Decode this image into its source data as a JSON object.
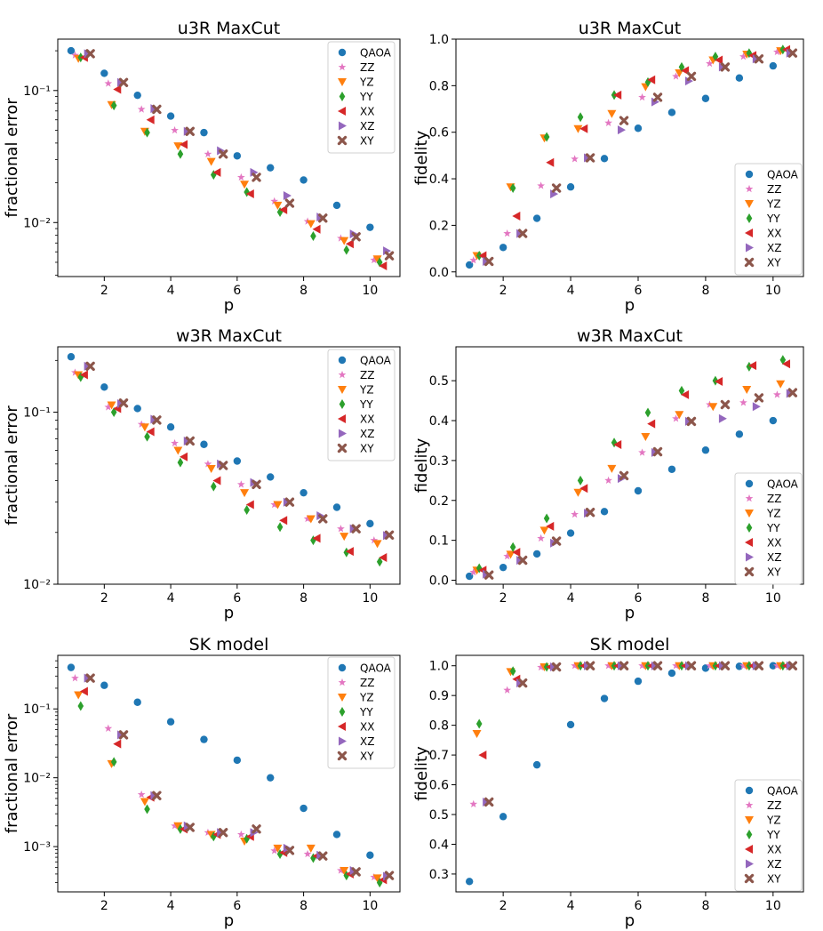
{
  "legend_entries": [
    "QAOA",
    "ZZ",
    "YZ",
    "YY",
    "XX",
    "XZ",
    "XY"
  ],
  "styles": {
    "QAOA": {
      "color": "#1f77b4",
      "marker": "circle"
    },
    "ZZ": {
      "color": "#e377c2",
      "marker": "star"
    },
    "YZ": {
      "color": "#ff7f0e",
      "marker": "triangle-down"
    },
    "YY": {
      "color": "#2ca02c",
      "marker": "thin-diamond"
    },
    "XX": {
      "color": "#d62728",
      "marker": "triangle-left"
    },
    "XZ": {
      "color": "#9467bd",
      "marker": "triangle-right"
    },
    "XY": {
      "color": "#8c564b",
      "marker": "x-filled"
    }
  },
  "chart_data": [
    {
      "type": "scatter",
      "title": "u3R MaxCut",
      "xlabel": "p",
      "ylabel": "fractional error",
      "yscale": "log",
      "xlim": [
        0.6,
        10.9
      ],
      "ylim": [
        0.0039,
        0.245
      ],
      "xticks": [
        2,
        4,
        6,
        8,
        10
      ],
      "yticks": [
        {
          "v": 0.01,
          "label": "10⁻²"
        },
        {
          "v": 0.1,
          "label": "10⁻¹"
        }
      ],
      "x": [
        1,
        2,
        3,
        4,
        5,
        6,
        7,
        8,
        9,
        10
      ],
      "series": [
        {
          "name": "QAOA",
          "values": [
            0.2,
            0.135,
            0.092,
            0.064,
            0.048,
            0.032,
            0.026,
            0.021,
            0.0135,
            0.0092
          ]
        },
        {
          "name": "ZZ",
          "values": [
            0.185,
            0.113,
            0.072,
            0.05,
            0.033,
            0.022,
            0.0145,
            0.0102,
            0.0076,
            0.0052
          ]
        },
        {
          "name": "YZ",
          "values": [
            0.175,
            0.078,
            0.049,
            0.038,
            0.029,
            0.0195,
            0.0135,
            0.0098,
            0.0073,
            0.0053
          ]
        },
        {
          "name": "YY",
          "values": [
            0.178,
            0.077,
            0.048,
            0.033,
            0.023,
            0.017,
            0.012,
            0.0079,
            0.0062,
            0.005
          ]
        },
        {
          "name": "XX",
          "values": [
            0.178,
            0.102,
            0.06,
            0.039,
            0.024,
            0.0165,
            0.0125,
            0.0089,
            0.0069,
            0.0047
          ]
        },
        {
          "name": "XZ",
          "values": [
            0.19,
            0.115,
            0.073,
            0.049,
            0.035,
            0.024,
            0.016,
            0.011,
            0.0082,
            0.0061
          ]
        },
        {
          "name": "XY",
          "values": [
            0.19,
            0.115,
            0.072,
            0.049,
            0.033,
            0.022,
            0.014,
            0.0108,
            0.0078,
            0.0056
          ]
        }
      ]
    },
    {
      "type": "scatter",
      "title": "u3R MaxCut",
      "xlabel": "p",
      "ylabel": "fidelity",
      "yscale": "linear",
      "xlim": [
        0.6,
        10.9
      ],
      "ylim": [
        -0.02,
        1.0
      ],
      "xticks": [
        2,
        4,
        6,
        8,
        10
      ],
      "yticks": [
        {
          "v": 0.0,
          "label": "0.0"
        },
        {
          "v": 0.2,
          "label": "0.2"
        },
        {
          "v": 0.4,
          "label": "0.4"
        },
        {
          "v": 0.6,
          "label": "0.6"
        },
        {
          "v": 0.8,
          "label": "0.8"
        },
        {
          "v": 1.0,
          "label": "1.0"
        }
      ],
      "x": [
        1,
        2,
        3,
        4,
        5,
        6,
        7,
        8,
        9,
        10
      ],
      "series": [
        {
          "name": "QAOA",
          "values": [
            0.03,
            0.105,
            0.23,
            0.365,
            0.487,
            0.617,
            0.685,
            0.745,
            0.833,
            0.885
          ]
        },
        {
          "name": "ZZ",
          "values": [
            0.05,
            0.165,
            0.37,
            0.485,
            0.64,
            0.75,
            0.84,
            0.895,
            0.925,
            0.945
          ]
        },
        {
          "name": "YZ",
          "values": [
            0.07,
            0.365,
            0.575,
            0.615,
            0.68,
            0.795,
            0.855,
            0.91,
            0.935,
            0.95
          ]
        },
        {
          "name": "YY",
          "values": [
            0.07,
            0.36,
            0.58,
            0.665,
            0.76,
            0.815,
            0.88,
            0.925,
            0.94,
            0.955
          ]
        },
        {
          "name": "XX",
          "values": [
            0.07,
            0.24,
            0.47,
            0.615,
            0.76,
            0.825,
            0.865,
            0.91,
            0.93,
            0.955
          ]
        },
        {
          "name": "XZ",
          "values": [
            0.045,
            0.165,
            0.335,
            0.49,
            0.61,
            0.73,
            0.82,
            0.88,
            0.915,
            0.94
          ]
        },
        {
          "name": "XY",
          "values": [
            0.045,
            0.165,
            0.36,
            0.49,
            0.65,
            0.75,
            0.84,
            0.88,
            0.915,
            0.94
          ]
        }
      ]
    },
    {
      "type": "scatter",
      "title": "w3R MaxCut",
      "xlabel": "p",
      "ylabel": "fractional error",
      "yscale": "log",
      "xlim": [
        0.6,
        10.9
      ],
      "ylim": [
        0.01,
        0.24
      ],
      "xticks": [
        2,
        4,
        6,
        8,
        10
      ],
      "yticks": [
        {
          "v": 0.01,
          "label": "10⁻²"
        },
        {
          "v": 0.1,
          "label": "10⁻¹"
        }
      ],
      "x": [
        1,
        2,
        3,
        4,
        5,
        6,
        7,
        8,
        9,
        10
      ],
      "series": [
        {
          "name": "QAOA",
          "values": [
            0.21,
            0.14,
            0.105,
            0.082,
            0.065,
            0.052,
            0.042,
            0.034,
            0.028,
            0.0225
          ]
        },
        {
          "name": "ZZ",
          "values": [
            0.17,
            0.107,
            0.085,
            0.066,
            0.05,
            0.038,
            0.029,
            0.024,
            0.021,
            0.018
          ]
        },
        {
          "name": "YZ",
          "values": [
            0.165,
            0.11,
            0.082,
            0.06,
            0.047,
            0.034,
            0.029,
            0.024,
            0.019,
            0.0172
          ]
        },
        {
          "name": "YY",
          "values": [
            0.16,
            0.1,
            0.072,
            0.051,
            0.037,
            0.027,
            0.0215,
            0.018,
            0.0153,
            0.0135
          ]
        },
        {
          "name": "XX",
          "values": [
            0.165,
            0.105,
            0.077,
            0.055,
            0.04,
            0.029,
            0.0235,
            0.0185,
            0.0155,
            0.0143
          ]
        },
        {
          "name": "XZ",
          "values": [
            0.185,
            0.112,
            0.091,
            0.068,
            0.05,
            0.039,
            0.03,
            0.025,
            0.021,
            0.0192
          ]
        },
        {
          "name": "XY",
          "values": [
            0.185,
            0.113,
            0.09,
            0.068,
            0.049,
            0.038,
            0.03,
            0.024,
            0.021,
            0.0193
          ]
        }
      ]
    },
    {
      "type": "scatter",
      "title": "w3R MaxCut",
      "xlabel": "p",
      "ylabel": "fidelity",
      "yscale": "linear",
      "xlim": [
        0.6,
        10.9
      ],
      "ylim": [
        -0.01,
        0.585
      ],
      "xticks": [
        2,
        4,
        6,
        8,
        10
      ],
      "yticks": [
        {
          "v": 0.0,
          "label": "0.0"
        },
        {
          "v": 0.1,
          "label": "0.1"
        },
        {
          "v": 0.2,
          "label": "0.2"
        },
        {
          "v": 0.3,
          "label": "0.3"
        },
        {
          "v": 0.4,
          "label": "0.4"
        },
        {
          "v": 0.5,
          "label": "0.5"
        }
      ],
      "x": [
        1,
        2,
        3,
        4,
        5,
        6,
        7,
        8,
        9,
        10
      ],
      "series": [
        {
          "name": "QAOA",
          "values": [
            0.01,
            0.032,
            0.066,
            0.118,
            0.172,
            0.224,
            0.278,
            0.326,
            0.366,
            0.4
          ]
        },
        {
          "name": "ZZ",
          "values": [
            0.02,
            0.06,
            0.105,
            0.165,
            0.25,
            0.32,
            0.405,
            0.44,
            0.445,
            0.465
          ]
        },
        {
          "name": "YZ",
          "values": [
            0.025,
            0.065,
            0.125,
            0.22,
            0.28,
            0.36,
            0.415,
            0.435,
            0.478,
            0.492
          ]
        },
        {
          "name": "YY",
          "values": [
            0.03,
            0.083,
            0.155,
            0.25,
            0.345,
            0.42,
            0.475,
            0.5,
            0.535,
            0.552
          ]
        },
        {
          "name": "XX",
          "values": [
            0.025,
            0.07,
            0.135,
            0.23,
            0.34,
            0.392,
            0.465,
            0.498,
            0.538,
            0.542
          ]
        },
        {
          "name": "XZ",
          "values": [
            0.015,
            0.05,
            0.093,
            0.168,
            0.255,
            0.32,
            0.398,
            0.405,
            0.435,
            0.468
          ]
        },
        {
          "name": "XY",
          "values": [
            0.013,
            0.05,
            0.098,
            0.17,
            0.262,
            0.322,
            0.398,
            0.44,
            0.457,
            0.47
          ]
        }
      ]
    },
    {
      "type": "scatter",
      "title": "SK model",
      "xlabel": "p",
      "ylabel": "fractional error",
      "yscale": "log",
      "xlim": [
        0.6,
        10.9
      ],
      "ylim": [
        0.00022,
        0.6
      ],
      "xticks": [
        2,
        4,
        6,
        8,
        10
      ],
      "yticks": [
        {
          "v": 0.001,
          "label": "10⁻³"
        },
        {
          "v": 0.01,
          "label": "10⁻²"
        },
        {
          "v": 0.1,
          "label": "10⁻¹"
        }
      ],
      "x": [
        1,
        2,
        3,
        4,
        5,
        6,
        7,
        8,
        9,
        10
      ],
      "series": [
        {
          "name": "QAOA",
          "values": [
            0.4,
            0.22,
            0.125,
            0.065,
            0.036,
            0.018,
            0.01,
            0.0036,
            0.0015,
            0.00075
          ]
        },
        {
          "name": "ZZ",
          "values": [
            0.28,
            0.052,
            0.0057,
            0.002,
            0.0016,
            0.0015,
            0.00087,
            0.00078,
            0.00045,
            0.00036
          ]
        },
        {
          "name": "YZ",
          "values": [
            0.16,
            0.016,
            0.0045,
            0.002,
            0.0015,
            0.0012,
            0.00095,
            0.00095,
            0.00045,
            0.00035
          ]
        },
        {
          "name": "YY",
          "values": [
            0.11,
            0.017,
            0.0035,
            0.0018,
            0.0014,
            0.0013,
            0.00078,
            0.00068,
            0.00038,
            0.0003
          ]
        },
        {
          "name": "XX",
          "values": [
            0.18,
            0.031,
            0.0052,
            0.0018,
            0.0015,
            0.0014,
            0.00082,
            0.00073,
            0.0004,
            0.00033
          ]
        },
        {
          "name": "XZ",
          "values": [
            0.28,
            0.042,
            0.0055,
            0.002,
            0.0016,
            0.0016,
            0.00095,
            0.00075,
            0.00045,
            0.00037
          ]
        },
        {
          "name": "XY",
          "values": [
            0.28,
            0.042,
            0.0055,
            0.0019,
            0.0016,
            0.0018,
            0.00088,
            0.00073,
            0.00043,
            0.00038
          ]
        }
      ]
    },
    {
      "type": "scatter",
      "title": "SK model",
      "xlabel": "p",
      "ylabel": "fidelity",
      "yscale": "linear",
      "xlim": [
        0.6,
        10.9
      ],
      "ylim": [
        0.24,
        1.035
      ],
      "xticks": [
        2,
        4,
        6,
        8,
        10
      ],
      "yticks": [
        {
          "v": 0.3,
          "label": "0.3"
        },
        {
          "v": 0.4,
          "label": "0.4"
        },
        {
          "v": 0.5,
          "label": "0.5"
        },
        {
          "v": 0.6,
          "label": "0.6"
        },
        {
          "v": 0.7,
          "label": "0.7"
        },
        {
          "v": 0.8,
          "label": "0.8"
        },
        {
          "v": 0.9,
          "label": "0.9"
        },
        {
          "v": 1.0,
          "label": "1.0"
        }
      ],
      "x": [
        1,
        2,
        3,
        4,
        5,
        6,
        7,
        8,
        9,
        10
      ],
      "series": [
        {
          "name": "QAOA",
          "values": [
            0.275,
            0.493,
            0.667,
            0.802,
            0.89,
            0.948,
            0.975,
            0.992,
            0.998,
            1.0
          ]
        },
        {
          "name": "ZZ",
          "values": [
            0.535,
            0.918,
            0.995,
            1.0,
            1.0,
            1.0,
            1.0,
            1.0,
            1.0,
            1.0
          ]
        },
        {
          "name": "YZ",
          "values": [
            0.772,
            0.98,
            0.996,
            1.0,
            1.0,
            1.0,
            1.0,
            1.0,
            1.0,
            1.0
          ]
        },
        {
          "name": "YY",
          "values": [
            0.805,
            0.982,
            0.996,
            1.0,
            1.0,
            1.0,
            1.0,
            1.0,
            1.0,
            1.0
          ]
        },
        {
          "name": "XX",
          "values": [
            0.7,
            0.955,
            0.996,
            1.0,
            1.0,
            1.0,
            1.0,
            1.0,
            1.0,
            1.0
          ]
        },
        {
          "name": "XZ",
          "values": [
            0.542,
            0.942,
            0.996,
            1.0,
            1.0,
            1.0,
            1.0,
            1.0,
            1.0,
            1.0
          ]
        },
        {
          "name": "XY",
          "values": [
            0.542,
            0.942,
            0.996,
            1.0,
            1.0,
            1.0,
            1.0,
            1.0,
            1.0,
            1.0
          ]
        }
      ]
    }
  ]
}
